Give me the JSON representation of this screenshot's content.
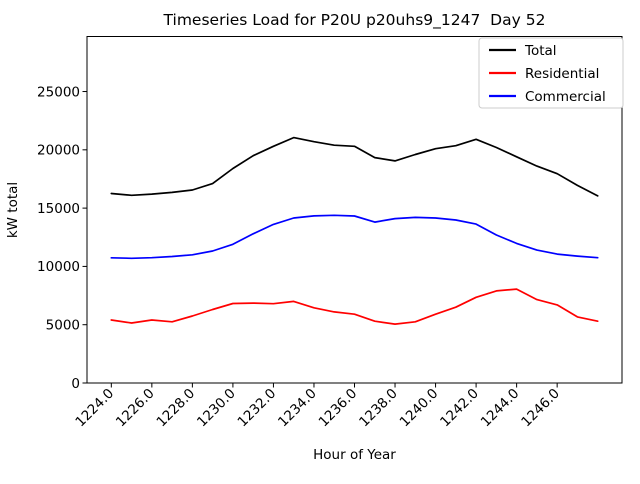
{
  "chart_data": {
    "type": "line",
    "title": "Timeseries Load for P20U p20uhs9_1247  Day 52",
    "xlabel": "Hour of Year",
    "ylabel": "kW total",
    "x": [
      1224,
      1225,
      1226,
      1227,
      1228,
      1229,
      1230,
      1231,
      1232,
      1233,
      1234,
      1235,
      1236,
      1237,
      1238,
      1239,
      1240,
      1241,
      1242,
      1243,
      1244,
      1245,
      1246,
      1247,
      1248
    ],
    "series": [
      {
        "name": "Total",
        "color": "#000000",
        "values": [
          16250,
          16100,
          16200,
          16350,
          16550,
          17100,
          18400,
          19500,
          20300,
          21050,
          20700,
          20400,
          20300,
          19330,
          19050,
          19600,
          20100,
          20350,
          20900,
          20200,
          19400,
          18600,
          17950,
          16950,
          16050
        ]
      },
      {
        "name": "Residential",
        "color": "#ff0000",
        "values": [
          5400,
          5150,
          5400,
          5250,
          5750,
          6300,
          6820,
          6850,
          6800,
          7000,
          6450,
          6100,
          5900,
          5300,
          5050,
          5250,
          5900,
          6500,
          7350,
          7900,
          8050,
          7150,
          6700,
          5670,
          5300
        ]
      },
      {
        "name": "Commercial",
        "color": "#0000ff",
        "values": [
          10740,
          10700,
          10750,
          10850,
          11000,
          11320,
          11900,
          12800,
          13600,
          14150,
          14330,
          14380,
          14320,
          13800,
          14100,
          14200,
          14150,
          13980,
          13630,
          12690,
          11975,
          11400,
          11055,
          10885,
          10750
        ]
      }
    ],
    "xlim": [
      1222.8,
      1249.2
    ],
    "ylim": [
      0,
      29720
    ],
    "xticks": [
      1224,
      1226,
      1228,
      1230,
      1232,
      1234,
      1236,
      1238,
      1240,
      1242,
      1244,
      1246
    ],
    "xtick_labels": [
      "1224.0",
      "1226.0",
      "1228.0",
      "1230.0",
      "1232.0",
      "1234.0",
      "1236.0",
      "1238.0",
      "1240.0",
      "1242.0",
      "1244.0",
      "1246.0"
    ],
    "yticks": [
      0,
      5000,
      10000,
      15000,
      20000,
      25000
    ],
    "ytick_labels": [
      "0",
      "5000",
      "10000",
      "15000",
      "20000",
      "25000"
    ],
    "grid": false,
    "legend": {
      "position": "upper right",
      "entries": [
        "Total",
        "Residential",
        "Commercial"
      ],
      "border_color": "#cccccc",
      "background": "#ffffff"
    },
    "colors": {
      "background": "#ffffff",
      "frame": "#000000"
    }
  }
}
